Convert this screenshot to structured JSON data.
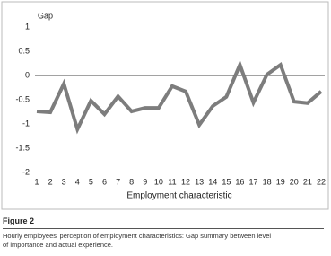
{
  "chart_data": {
    "type": "line",
    "y_label": "Gap",
    "x_label": "Employment characteristic",
    "categories": [
      "1",
      "2",
      "3",
      "4",
      "5",
      "6",
      "7",
      "8",
      "9",
      "10",
      "11",
      "12",
      "13",
      "14",
      "15",
      "16",
      "17",
      "18",
      "19",
      "20",
      "21",
      "22"
    ],
    "values": [
      -0.74,
      -0.76,
      -0.17,
      -1.11,
      -0.52,
      -0.8,
      -0.43,
      -0.74,
      -0.67,
      -0.67,
      -0.22,
      -0.33,
      -1.02,
      -0.63,
      -0.44,
      0.22,
      -0.56,
      0.02,
      0.22,
      -0.54,
      -0.57,
      -0.33
    ],
    "color": "#7d7d7d",
    "ylim": [
      -2,
      1
    ],
    "yticks": [
      -2,
      -1.5,
      -1,
      -0.5,
      0,
      0.5,
      1
    ],
    "zero_line": true,
    "grid": false
  },
  "caption": {
    "label": "Figure 2",
    "text": "Hourly employees' perception of employment characteristics: Gap summary between level of importance and actual experience."
  }
}
